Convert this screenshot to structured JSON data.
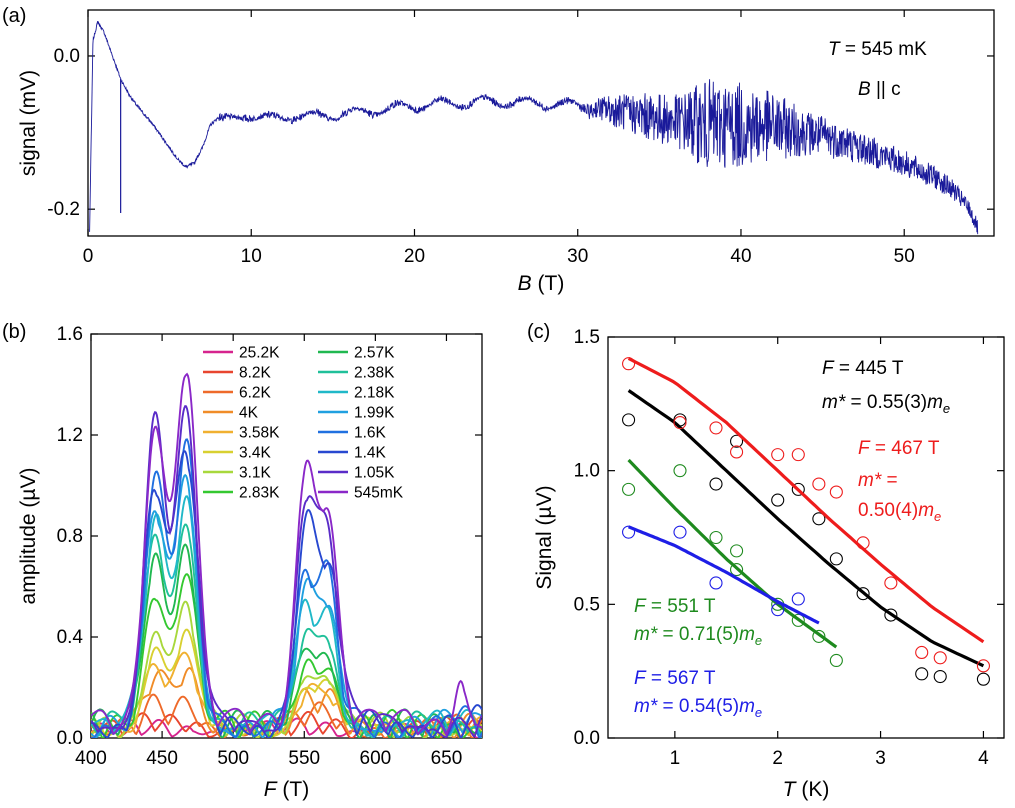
{
  "panels": {
    "a": {
      "label": "(a)"
    },
    "b": {
      "label": "(b)"
    },
    "c": {
      "label": "(c)"
    }
  },
  "chart_data": [
    {
      "panel": "(a)",
      "type": "line",
      "xlabel_italic": "B",
      "xlabel_rest": " (T)",
      "ylabel": "signal (mV)",
      "xlim": [
        0,
        55.5
      ],
      "ylim": [
        -0.235,
        0.06
      ],
      "xticks": [
        "0",
        "10",
        "20",
        "30",
        "40",
        "50"
      ],
      "xtick_values": [
        0,
        10,
        20,
        30,
        40,
        50
      ],
      "yticks": [
        "0.0",
        "-0.2"
      ],
      "ytick_values": [
        0.0,
        -0.2
      ],
      "annotation_line1_var": "T",
      "annotation_line1_rest": " = 545 mK",
      "annotation_line2_var": "B",
      "annotation_line2_rest": " || c",
      "color": "#1a1a9a",
      "x": [
        0.1,
        0.3,
        0.6,
        1.0,
        1.5,
        2.0,
        2.5,
        3.0,
        4.0,
        5.0,
        5.5,
        6.0,
        6.5,
        7.0,
        7.5,
        8.0,
        9.0,
        10,
        12,
        14,
        16,
        18,
        20,
        22,
        24,
        26,
        28,
        30,
        32,
        34,
        36,
        38,
        40,
        42,
        44,
        46,
        48,
        50,
        52,
        53,
        54,
        54.5
      ],
      "y": [
        -0.23,
        0.02,
        0.045,
        0.03,
        0.0,
        -0.03,
        -0.05,
        -0.065,
        -0.09,
        -0.12,
        -0.135,
        -0.145,
        -0.14,
        -0.12,
        -0.09,
        -0.08,
        -0.08,
        -0.08,
        -0.08,
        -0.078,
        -0.075,
        -0.07,
        -0.065,
        -0.062,
        -0.06,
        -0.06,
        -0.062,
        -0.065,
        -0.07,
        -0.078,
        -0.085,
        -0.09,
        -0.09,
        -0.092,
        -0.1,
        -0.11,
        -0.125,
        -0.14,
        -0.16,
        -0.175,
        -0.2,
        -0.225
      ],
      "spikes": [
        {
          "x": 2.0,
          "y": -0.205
        }
      ],
      "noise_amplitude": [
        {
          "x": 30,
          "a": 0.004
        },
        {
          "x": 32,
          "a": 0.02
        },
        {
          "x": 34,
          "a": 0.03
        },
        {
          "x": 36,
          "a": 0.035
        },
        {
          "x": 38,
          "a": 0.06
        },
        {
          "x": 40,
          "a": 0.055
        },
        {
          "x": 42,
          "a": 0.045
        },
        {
          "x": 44,
          "a": 0.03
        },
        {
          "x": 48,
          "a": 0.02
        },
        {
          "x": 52,
          "a": 0.015
        },
        {
          "x": 54.5,
          "a": 0.01
        }
      ]
    },
    {
      "panel": "(b)",
      "type": "line",
      "xlabel_italic": "F",
      "xlabel_rest": " (T)",
      "ylabel": "amplitude (µV)",
      "xlim": [
        400,
        675
      ],
      "ylim": [
        0,
        1.6
      ],
      "xticks": [
        "400",
        "450",
        "500",
        "550",
        "600",
        "650"
      ],
      "xtick_values": [
        400,
        450,
        500,
        550,
        600,
        650
      ],
      "yticks": [
        "0.0",
        "0.4",
        "0.8",
        "1.2",
        "1.6"
      ],
      "ytick_values": [
        0.0,
        0.4,
        0.8,
        1.2,
        1.6
      ],
      "peak_positions": [
        445,
        467,
        551,
        567
      ],
      "peak_widths": [
        7.5,
        7.5,
        7.0,
        7.0
      ],
      "series": [
        {
          "name": "25.2K",
          "color": "#d6248e",
          "peaks": [
            0.01,
            0.01,
            0.01,
            0.01
          ]
        },
        {
          "name": "8.2K",
          "color": "#e8452f",
          "peaks": [
            0.03,
            0.03,
            0.02,
            0.02
          ]
        },
        {
          "name": "6.2K",
          "color": "#ee6a2a",
          "peaks": [
            0.08,
            0.09,
            0.05,
            0.05
          ]
        },
        {
          "name": "4K",
          "color": "#f08c28",
          "peaks": [
            0.2,
            0.22,
            0.1,
            0.1
          ]
        },
        {
          "name": "3.58K",
          "color": "#f0b030",
          "peaks": [
            0.24,
            0.27,
            0.13,
            0.12
          ]
        },
        {
          "name": "3.4K",
          "color": "#d8d030",
          "peaks": [
            0.3,
            0.36,
            0.16,
            0.15
          ]
        },
        {
          "name": "3.1K",
          "color": "#a8d83c",
          "peaks": [
            0.38,
            0.47,
            0.2,
            0.18
          ]
        },
        {
          "name": "2.83K",
          "color": "#34c830",
          "peaks": [
            0.54,
            0.6,
            0.25,
            0.22
          ]
        },
        {
          "name": "2.57K",
          "color": "#20b850",
          "peaks": [
            0.67,
            0.72,
            0.29,
            0.27
          ]
        },
        {
          "name": "2.38K",
          "color": "#20c09a",
          "peaks": [
            0.73,
            0.8,
            0.34,
            0.32
          ]
        },
        {
          "name": "2.18K",
          "color": "#20b8c8",
          "peaks": [
            0.79,
            0.89,
            0.43,
            0.39
          ]
        },
        {
          "name": "1.99K",
          "color": "#20a0e0",
          "peaks": [
            0.84,
            0.97,
            0.48,
            0.45
          ]
        },
        {
          "name": "1.6K",
          "color": "#2070e0",
          "peaks": [
            0.93,
            1.06,
            0.56,
            0.52
          ]
        },
        {
          "name": "1.4K",
          "color": "#2848d0",
          "peaks": [
            0.95,
            1.09,
            0.74,
            0.6
          ]
        },
        {
          "name": "1.05K",
          "color": "#5a2cc8",
          "peaks": [
            1.19,
            1.18,
            0.88,
            0.7
          ]
        },
        {
          "name": "545mK",
          "color": "#8a28c8",
          "peaks": [
            1.19,
            1.4,
            1.0,
            0.77
          ]
        }
      ]
    },
    {
      "panel": "(c)",
      "type": "scatter",
      "xlabel_italic": "T",
      "xlabel_rest": " (K)",
      "ylabel": "Signal (µV)",
      "xlim": [
        0.35,
        4.2
      ],
      "ylim": [
        0.0,
        1.5
      ],
      "xticks": [
        "1",
        "2",
        "3",
        "4"
      ],
      "xtick_values": [
        1,
        2,
        3,
        4
      ],
      "yticks": [
        "0.0",
        "0.5",
        "1.0",
        "1.5"
      ],
      "ytick_values": [
        0.0,
        0.5,
        1.0,
        1.5
      ],
      "series": [
        {
          "color": "#000000",
          "label_line1_var": "F",
          "label_line1_rest": " = 445 T",
          "label_line2_var": "m*",
          "label_line2_rest": " = 0.55(3)",
          "label_line2_sub": "m",
          "label_line2_subscript": "e",
          "points_x": [
            0.55,
            1.05,
            1.4,
            1.6,
            2.0,
            2.2,
            2.4,
            2.57,
            2.83,
            3.1,
            3.4,
            3.58,
            4.0
          ],
          "points_y": [
            1.19,
            1.19,
            0.95,
            1.11,
            0.89,
            0.93,
            0.82,
            0.67,
            0.54,
            0.46,
            0.24,
            0.23,
            0.22
          ],
          "fit_x": [
            0.55,
            1.0,
            1.5,
            2.0,
            2.5,
            3.0,
            3.5,
            4.0
          ],
          "fit_y": [
            1.3,
            1.18,
            1.0,
            0.82,
            0.65,
            0.49,
            0.36,
            0.27
          ]
        },
        {
          "color": "#ee1c1c",
          "label_line1_var": "F",
          "label_line1_rest": " = 467 T",
          "label_line2_var": "m*",
          "label_line2_rest": " =",
          "label_line3_rest": "0.50(4)",
          "label_line3_sub": "m",
          "label_line3_subscript": "e",
          "points_x": [
            0.55,
            1.05,
            1.4,
            1.6,
            2.0,
            2.2,
            2.4,
            2.57,
            2.83,
            3.1,
            3.4,
            3.58,
            4.0
          ],
          "points_y": [
            1.4,
            1.18,
            1.16,
            1.07,
            1.06,
            1.06,
            0.95,
            0.92,
            0.73,
            0.58,
            0.32,
            0.3,
            0.27
          ],
          "fit_x": [
            0.55,
            1.0,
            1.5,
            2.0,
            2.5,
            3.0,
            3.5,
            4.0
          ],
          "fit_y": [
            1.42,
            1.33,
            1.18,
            1.0,
            0.82,
            0.65,
            0.49,
            0.36
          ]
        },
        {
          "color": "#1e8a1e",
          "label_line1_var": "F",
          "label_line1_rest": " = 551 T",
          "label_line2_var": "m*",
          "label_line2_rest": " = 0.71(5)",
          "label_line2_sub": "m",
          "label_line2_subscript": "e",
          "points_x": [
            0.55,
            1.05,
            1.4,
            1.6,
            1.6,
            2.0,
            2.2,
            2.4,
            2.57
          ],
          "points_y": [
            0.93,
            1.0,
            0.75,
            0.7,
            0.63,
            0.5,
            0.44,
            0.38,
            0.29
          ],
          "fit_x": [
            0.55,
            1.0,
            1.5,
            2.0,
            2.57
          ],
          "fit_y": [
            1.04,
            0.86,
            0.67,
            0.5,
            0.34
          ]
        },
        {
          "color": "#1e1ee6",
          "label_line1_var": "F",
          "label_line1_rest": " = 567 T",
          "label_line2_var": "m*",
          "label_line2_rest": " = 0.54(5)",
          "label_line2_sub": "m",
          "label_line2_subscript": "e",
          "points_x": [
            0.55,
            1.05,
            1.4,
            2.0,
            2.2
          ],
          "points_y": [
            0.77,
            0.77,
            0.58,
            0.48,
            0.52
          ],
          "fit_x": [
            0.55,
            1.0,
            1.5,
            2.0,
            2.4
          ],
          "fit_y": [
            0.79,
            0.72,
            0.62,
            0.51,
            0.43
          ]
        }
      ]
    }
  ]
}
